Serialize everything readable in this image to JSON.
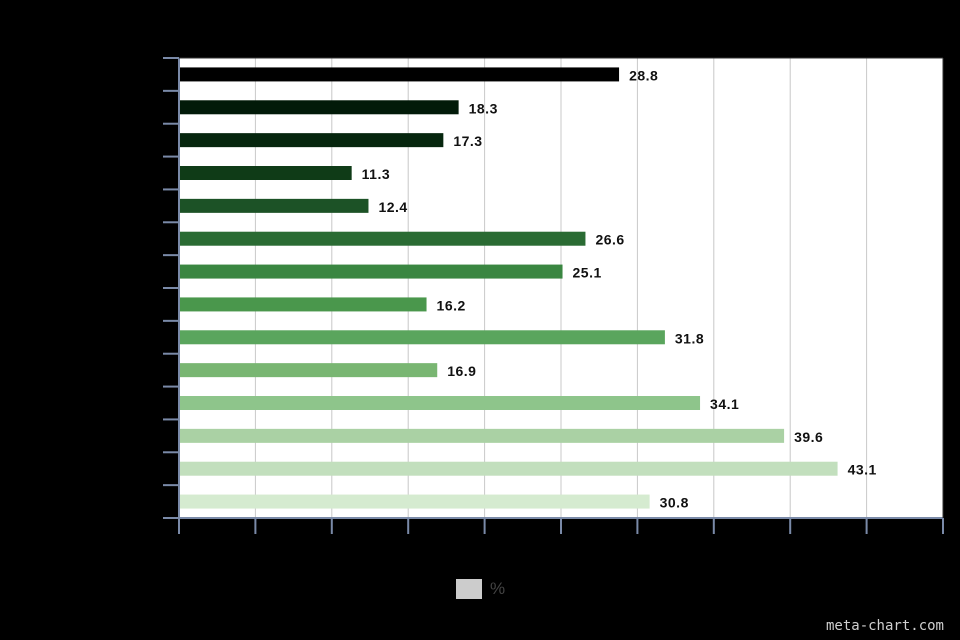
{
  "chart_data": {
    "type": "bar",
    "orientation": "horizontal",
    "title": "",
    "xlabel": "",
    "ylabel": "",
    "xlim": [
      0,
      50
    ],
    "categories": [
      "",
      "",
      "",
      "",
      "",
      "",
      "",
      "",
      "",
      "",
      "",
      "",
      "",
      ""
    ],
    "series": [
      {
        "name": "%",
        "values": [
          28.8,
          18.3,
          17.3,
          11.3,
          12.4,
          26.6,
          25.1,
          16.2,
          31.8,
          16.9,
          34.1,
          39.6,
          43.1,
          30.8
        ],
        "labels": [
          "28.8",
          "18.3",
          "17.3",
          "11.3",
          "12.4",
          "26.6",
          "25.1",
          "16.2",
          "31.8",
          "16.9",
          "34.1",
          "39.6",
          "43.1",
          "30.8"
        ]
      }
    ],
    "grid": true,
    "legend_position": "bottom-center"
  },
  "colors": {
    "background": "#000000",
    "plot_background": "#ffffff",
    "grid": "#c8c8c8",
    "axis": "#7a8aa8",
    "label_text": "#111111",
    "legend_swatch": "#cccccc",
    "bars": [
      "#000000",
      "#021a09",
      "#06260e",
      "#0f3b17",
      "#1c5226",
      "#2a6b33",
      "#3a8641",
      "#4a974c",
      "#5aa55d",
      "#79b672",
      "#8ec58b",
      "#aad1a4",
      "#c2dfbd",
      "#d5ebd0"
    ]
  },
  "legend": {
    "label": "%"
  },
  "watermark": "meta-chart.com"
}
